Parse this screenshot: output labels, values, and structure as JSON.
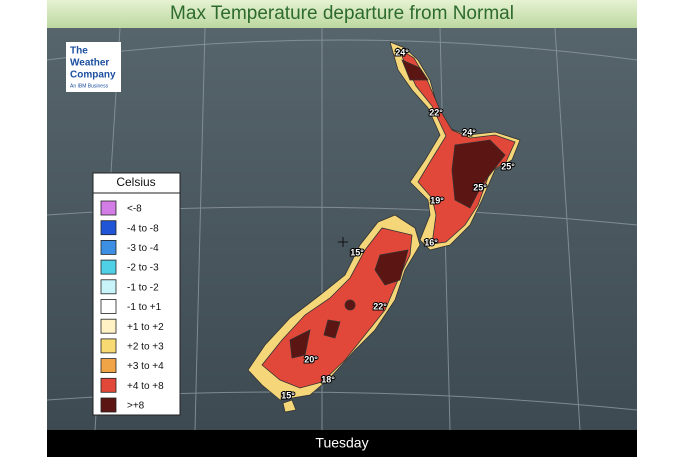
{
  "title": "Max Temperature departure from Normal",
  "logo": {
    "line1": "The",
    "line2": "Weather",
    "line3": "Company",
    "tagline": "An IBM Business"
  },
  "legend": {
    "title": "Celsius",
    "items": [
      {
        "label": "<-8",
        "color": "#d27ce6"
      },
      {
        "label": "-4 to -8",
        "color": "#1f55d6"
      },
      {
        "label": "-3 to -4",
        "color": "#3d8fe3"
      },
      {
        "label": "-2 to -3",
        "color": "#4fd0e6"
      },
      {
        "label": "-1 to -2",
        "color": "#c8f3f9"
      },
      {
        "label": "-1 to +1",
        "color": "#ffffff"
      },
      {
        "label": "+1 to +2",
        "color": "#fff2c4"
      },
      {
        "label": "+2 to +3",
        "color": "#f7da72"
      },
      {
        "label": "+3 to +4",
        "color": "#f0a445"
      },
      {
        "label": "+4 to +8",
        "color": "#e2483a"
      },
      {
        "label": ">+8",
        "color": "#5b1512"
      }
    ]
  },
  "map_labels": [
    "24°",
    "22°",
    "24°",
    "25°",
    "25°",
    "19°",
    "16°",
    "15°",
    "22°",
    "20°",
    "18°",
    "15°"
  ],
  "footer": "Tuesday"
}
